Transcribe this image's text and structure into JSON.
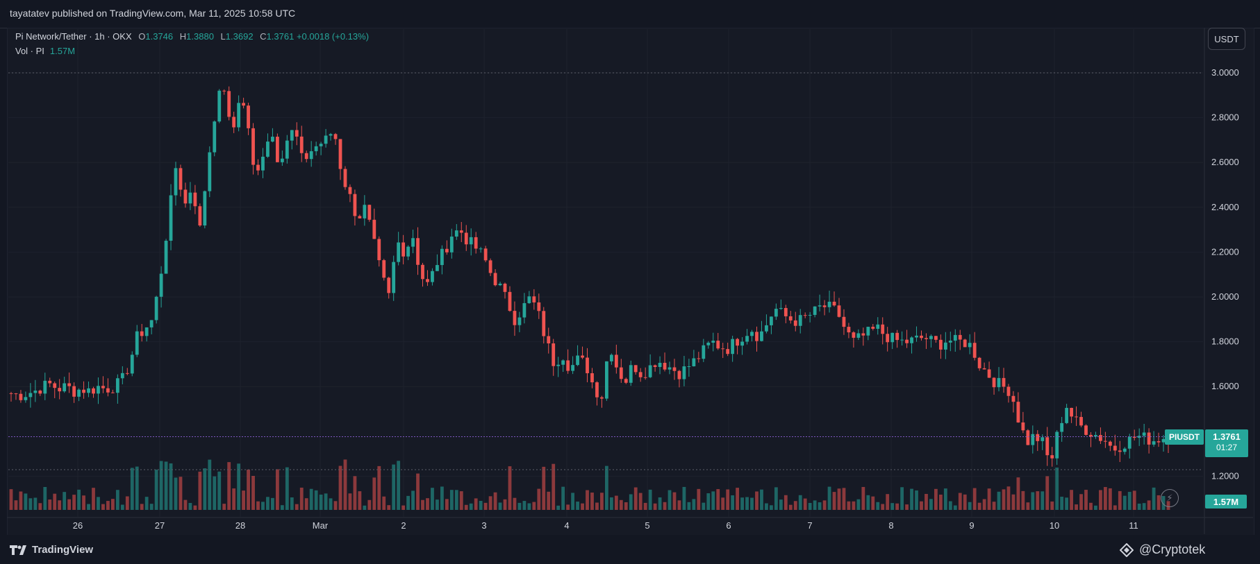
{
  "header": {
    "publisher_text": "tayatatev published on TradingView.com, Mar 11, 2025 10:58 UTC"
  },
  "legend": {
    "symbol": "Pi Network/Tether · 1h · OKX",
    "open_label": "O",
    "open": "1.3746",
    "high_label": "H",
    "high": "1.3880",
    "low_label": "L",
    "low": "1.3692",
    "close_label": "C",
    "close": "1.3761",
    "change": "+0.0018 (+0.13%)",
    "volume_label": "Vol · PI",
    "volume": "1.57M"
  },
  "currency_button": "USDT",
  "price_axis": {
    "ticks": [
      "3.0000",
      "2.8000",
      "2.6000",
      "2.4000",
      "2.2000",
      "2.0000",
      "1.8000",
      "1.6000",
      "1.2000"
    ]
  },
  "time_axis": {
    "ticks": [
      "26",
      "27",
      "28",
      "Mar",
      "2",
      "3",
      "4",
      "5",
      "6",
      "7",
      "8",
      "9",
      "10",
      "11"
    ]
  },
  "last_price": {
    "symbol": "PIUSDT",
    "price": "1.3761",
    "countdown": "01:27"
  },
  "volume_tag": "1.57M",
  "footer": {
    "brand": "TradingView",
    "watermark": "@Cryptotek"
  },
  "colors": {
    "up": "#26a69a",
    "down": "#ef5350",
    "background": "#131722",
    "grid": "#1e222d",
    "last_line": "#7e57c2"
  },
  "chart_data": {
    "type": "candlestick",
    "x_axis_labels": [
      "26",
      "27",
      "28",
      "Mar",
      "2",
      "3",
      "4",
      "5",
      "6",
      "7",
      "8",
      "9",
      "10",
      "11"
    ],
    "ylim": [
      1.1,
      3.0
    ],
    "price_path": [
      1.57,
      1.56,
      1.57,
      1.58,
      1.6,
      1.61,
      1.59,
      1.6,
      1.58,
      1.59,
      1.58,
      1.6,
      1.59,
      1.6,
      1.62,
      1.7,
      1.82,
      1.86,
      1.9,
      2.1,
      2.35,
      2.6,
      2.4,
      2.5,
      2.3,
      2.6,
      2.85,
      2.95,
      2.7,
      2.9,
      2.8,
      2.5,
      2.65,
      2.75,
      2.6,
      2.7,
      2.75,
      2.6,
      2.65,
      2.68,
      2.7,
      2.75,
      2.55,
      2.45,
      2.35,
      2.4,
      2.25,
      2.1,
      2.0,
      2.25,
      2.2,
      2.28,
      2.1,
      2.05,
      2.15,
      2.2,
      2.28,
      2.3,
      2.25,
      2.22,
      2.18,
      2.1,
      2.05,
      1.98,
      1.9,
      1.95,
      2.0,
      1.92,
      1.8,
      1.7,
      1.75,
      1.68,
      1.72,
      1.7,
      1.6,
      1.55,
      1.8,
      1.68,
      1.62,
      1.7,
      1.66,
      1.68,
      1.72,
      1.7,
      1.68,
      1.66,
      1.69,
      1.72,
      1.76,
      1.8,
      1.78,
      1.77,
      1.8,
      1.83,
      1.86,
      1.82,
      1.88,
      1.95,
      1.92,
      1.9,
      1.89,
      1.91,
      1.93,
      1.96,
      1.95,
      1.93,
      1.85,
      1.8,
      1.82,
      1.84,
      1.86,
      1.83,
      1.81,
      1.8,
      1.8,
      1.81,
      1.82,
      1.8,
      1.79,
      1.81,
      1.8,
      1.8,
      1.78,
      1.7,
      1.66,
      1.62,
      1.6,
      1.58,
      1.45,
      1.35,
      1.38,
      1.35,
      1.25,
      1.4,
      1.52,
      1.45,
      1.42,
      1.4,
      1.38,
      1.36,
      1.32,
      1.34,
      1.36,
      1.38,
      1.37,
      1.36,
      1.37,
      1.376
    ]
  }
}
